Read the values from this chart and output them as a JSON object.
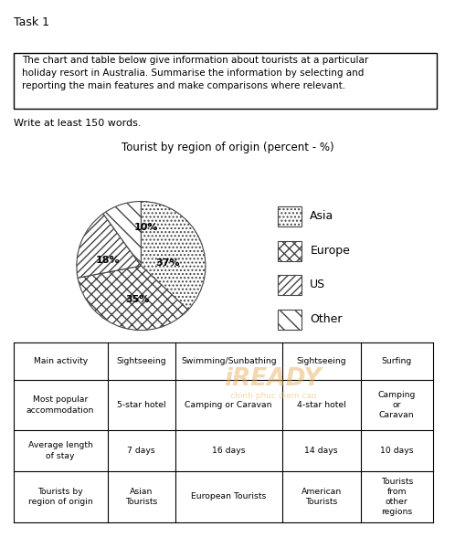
{
  "task_label": "Task 1",
  "prompt_text": "The chart and table below give information about tourists at a particular\nholiday resort in Australia. Summarise the information by selecting and\nreporting the main features and make comparisons where relevant.",
  "write_label": "Write at least 150 words.",
  "pie_title": "Tourist by region of origin (percent - %)",
  "pie_values": [
    37,
    35,
    18,
    10
  ],
  "pie_labels": [
    "Asia",
    "Europe",
    "US",
    "Other"
  ],
  "pie_label_texts": [
    "37%",
    "35%",
    "18%",
    "10%"
  ],
  "legend_labels": [
    "Asia",
    "Europe",
    "US",
    "Other"
  ],
  "table_col_headers": [
    "Tourists by\nregion of origin",
    "Asian\nTourists",
    "European Tourists",
    "American\nTourists",
    "Tourists\nfrom\nother\nregions"
  ],
  "table_rows": [
    [
      "Average length\nof stay",
      "7 days",
      "16 days",
      "14 days",
      "10 days"
    ],
    [
      "Most popular\naccommodation",
      "5-star hotel",
      "Camping or Caravan",
      "4-star hotel",
      "Camping\nor\nCaravan"
    ],
    [
      "Main activity",
      "Sightseeing",
      "Swimming/Sunbathing",
      "Sightseeing",
      "Surfing"
    ]
  ],
  "bg_color": "#ffffff",
  "text_color": "#000000",
  "border_color": "#000000"
}
